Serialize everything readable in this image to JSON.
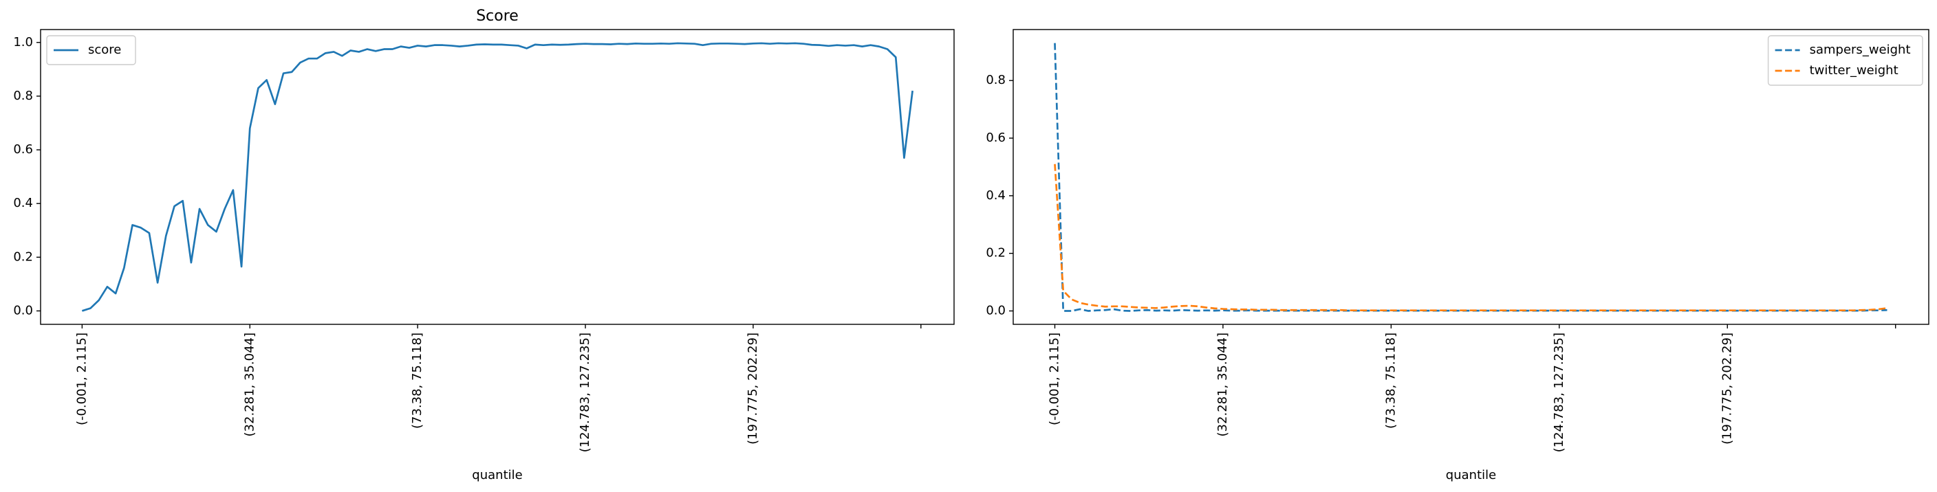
{
  "chart_data": [
    {
      "type": "line",
      "title": "Score",
      "x_label": "quantile",
      "categories": [
        "(-0.001, 2.115]",
        null,
        null,
        null,
        null,
        null,
        null,
        null,
        null,
        null,
        null,
        null,
        null,
        null,
        null,
        null,
        null,
        null,
        null,
        null,
        "(32.281, 35.044]",
        null,
        null,
        null,
        null,
        null,
        null,
        null,
        null,
        null,
        null,
        null,
        null,
        null,
        null,
        null,
        null,
        null,
        null,
        null,
        "(73.38, 75.118]",
        null,
        null,
        null,
        null,
        null,
        null,
        null,
        null,
        null,
        null,
        null,
        null,
        null,
        null,
        null,
        null,
        null,
        null,
        null,
        "(124.783, 127.235]",
        null,
        null,
        null,
        null,
        null,
        null,
        null,
        null,
        null,
        null,
        null,
        null,
        null,
        null,
        null,
        null,
        null,
        null,
        null,
        "(197.775, 202.29]",
        null,
        null,
        null,
        null,
        null,
        null,
        null,
        null,
        null,
        null,
        null,
        null,
        null,
        null,
        null,
        null,
        null,
        null,
        null
      ],
      "xlim": [
        -4.95,
        103.95
      ],
      "xticks": [
        0,
        20,
        40,
        60,
        80,
        100
      ],
      "ylim": [
        -0.05,
        1.048
      ],
      "yticks": [
        {
          "value": 0,
          "label": "0.0"
        },
        0.2,
        0.4,
        0.6,
        0.8,
        {
          "value": 1,
          "label": "1.0"
        }
      ],
      "legend": "upper left",
      "series": [
        {
          "name": "score",
          "color": "#1f77b4",
          "linestyle": "solid",
          "values": [
            0.0,
            0.01,
            0.04,
            0.09,
            0.065,
            0.16,
            0.32,
            0.31,
            0.29,
            0.105,
            0.28,
            0.39,
            0.41,
            0.18,
            0.38,
            0.32,
            0.295,
            0.38,
            0.45,
            0.165,
            0.68,
            0.83,
            0.86,
            0.77,
            0.885,
            0.89,
            0.925,
            0.94,
            0.94,
            0.96,
            0.965,
            0.95,
            0.97,
            0.965,
            0.975,
            0.968,
            0.975,
            0.975,
            0.985,
            0.98,
            0.988,
            0.985,
            0.99,
            0.99,
            0.988,
            0.985,
            0.988,
            0.992,
            0.993,
            0.992,
            0.992,
            0.99,
            0.988,
            0.978,
            0.992,
            0.99,
            0.992,
            0.991,
            0.992,
            0.994,
            0.995,
            0.994,
            0.994,
            0.993,
            0.995,
            0.994,
            0.996,
            0.995,
            0.995,
            0.996,
            0.995,
            0.997,
            0.996,
            0.995,
            0.99,
            0.995,
            0.996,
            0.996,
            0.995,
            0.994,
            0.996,
            0.997,
            0.995,
            0.997,
            0.996,
            0.997,
            0.995,
            0.991,
            0.99,
            0.987,
            0.99,
            0.988,
            0.99,
            0.985,
            0.99,
            0.985,
            0.975,
            0.945,
            0.57,
            0.82
          ]
        }
      ]
    },
    {
      "type": "line",
      "x_label": "quantile",
      "categories": [
        "(-0.001, 2.115]",
        null,
        null,
        null,
        null,
        null,
        null,
        null,
        null,
        null,
        null,
        null,
        null,
        null,
        null,
        null,
        null,
        null,
        null,
        null,
        "(32.281, 35.044]",
        null,
        null,
        null,
        null,
        null,
        null,
        null,
        null,
        null,
        null,
        null,
        null,
        null,
        null,
        null,
        null,
        null,
        null,
        null,
        "(73.38, 75.118]",
        null,
        null,
        null,
        null,
        null,
        null,
        null,
        null,
        null,
        null,
        null,
        null,
        null,
        null,
        null,
        null,
        null,
        null,
        null,
        "(124.783, 127.235]",
        null,
        null,
        null,
        null,
        null,
        null,
        null,
        null,
        null,
        null,
        null,
        null,
        null,
        null,
        null,
        null,
        null,
        null,
        null,
        "(197.775, 202.29]",
        null,
        null,
        null,
        null,
        null,
        null,
        null,
        null,
        null,
        null,
        null,
        null,
        null,
        null,
        null,
        null,
        null,
        null,
        null
      ],
      "xlim": [
        -4.95,
        103.95
      ],
      "xticks": [
        0,
        20,
        40,
        60,
        80,
        100
      ],
      "ylim": [
        -0.0465,
        0.977
      ],
      "yticks": [
        {
          "value": 0,
          "label": "0.0"
        },
        0.2,
        0.4,
        0.6,
        0.8
      ],
      "legend": "upper right",
      "series": [
        {
          "name": "sampers_weight",
          "color": "#1f77b4",
          "linestyle": "dashed",
          "values": [
            0.93,
            0.0,
            0.0,
            0.006,
            0.0,
            0.002,
            0.003,
            0.006,
            0.001,
            0.0,
            0.002,
            0.003,
            0.001,
            0.002,
            0.001,
            0.003,
            0.002,
            0.001,
            0.002,
            0.001,
            0.002,
            0.001,
            0.001,
            0.002,
            0.001,
            0.001,
            0.001,
            0.001,
            0.001,
            0.001,
            0.001,
            0.001,
            0.001,
            0.001,
            0.001,
            0.001,
            0.001,
            0.001,
            0.001,
            0.001,
            0.001,
            0.001,
            0.001,
            0.001,
            0.001,
            0.001,
            0.001,
            0.001,
            0.001,
            0.001,
            0.001,
            0.001,
            0.001,
            0.001,
            0.001,
            0.001,
            0.001,
            0.001,
            0.001,
            0.001,
            0.001,
            0.001,
            0.001,
            0.001,
            0.001,
            0.001,
            0.001,
            0.001,
            0.001,
            0.001,
            0.001,
            0.001,
            0.001,
            0.001,
            0.001,
            0.001,
            0.001,
            0.001,
            0.001,
            0.001,
            0.001,
            0.001,
            0.001,
            0.001,
            0.001,
            0.001,
            0.001,
            0.001,
            0.001,
            0.001,
            0.001,
            0.001,
            0.001,
            0.001,
            0.001,
            0.001,
            0.001,
            0.002,
            0.002,
            0.003
          ]
        },
        {
          "name": "twitter_weight",
          "color": "#ff7f0e",
          "linestyle": "dashed",
          "values": [
            0.51,
            0.07,
            0.04,
            0.028,
            0.022,
            0.018,
            0.015,
            0.016,
            0.016,
            0.014,
            0.012,
            0.011,
            0.01,
            0.012,
            0.015,
            0.017,
            0.018,
            0.016,
            0.012,
            0.009,
            0.007,
            0.006,
            0.005,
            0.005,
            0.004,
            0.004,
            0.004,
            0.003,
            0.003,
            0.003,
            0.003,
            0.003,
            0.003,
            0.003,
            0.003,
            0.002,
            0.002,
            0.002,
            0.002,
            0.002,
            0.002,
            0.002,
            0.002,
            0.002,
            0.002,
            0.002,
            0.002,
            0.002,
            0.002,
            0.002,
            0.002,
            0.002,
            0.002,
            0.002,
            0.002,
            0.002,
            0.002,
            0.002,
            0.002,
            0.002,
            0.002,
            0.002,
            0.002,
            0.002,
            0.002,
            0.002,
            0.002,
            0.002,
            0.002,
            0.002,
            0.002,
            0.002,
            0.002,
            0.002,
            0.002,
            0.002,
            0.002,
            0.002,
            0.002,
            0.002,
            0.002,
            0.002,
            0.002,
            0.002,
            0.002,
            0.002,
            0.002,
            0.002,
            0.002,
            0.002,
            0.002,
            0.002,
            0.002,
            0.002,
            0.002,
            0.002,
            0.003,
            0.004,
            0.006,
            0.01
          ]
        }
      ]
    }
  ]
}
